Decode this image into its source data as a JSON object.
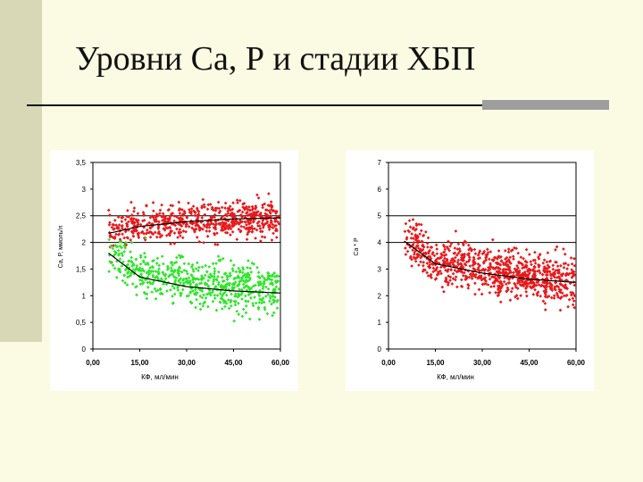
{
  "slide": {
    "title": "Уровни Са, Р и стадии ХБП"
  },
  "colors": {
    "background": "#fbfbe3",
    "sidebar": "#d8d8b6",
    "red": "#e8191b",
    "green": "#2ee62a",
    "line": "#000000"
  },
  "chart_data": [
    {
      "type": "scatter",
      "title": "",
      "xlabel": "КФ, мл/мин",
      "ylabel": "Ca, P, ммоль/л",
      "xlim": [
        0,
        60
      ],
      "ylim": [
        0,
        3.5
      ],
      "x_ticks": [
        "0,00",
        "15,00",
        "30,00",
        "45,00",
        "60,00"
      ],
      "y_ticks": [
        "0",
        "0,5",
        "1",
        "1,5",
        "2",
        "2,5",
        "3",
        "3,5"
      ],
      "hlines": [
        2,
        2.5
      ],
      "grid": false,
      "series": [
        {
          "color": "#e8191b",
          "x_range": [
            5,
            60
          ],
          "center": 2.4,
          "spread": 0.16,
          "count": 650,
          "trend": {
            "x": [
              5,
              15,
              30,
              45,
              60
            ],
            "y": [
              2.17,
              2.3,
              2.39,
              2.44,
              2.46
            ]
          }
        },
        {
          "color": "#2ee62a",
          "x_range": [
            5,
            60
          ],
          "center": 1.3,
          "spread": 0.22,
          "count": 650,
          "trend": {
            "x": [
              5,
              15,
              30,
              45,
              60
            ],
            "y": [
              1.8,
              1.35,
              1.17,
              1.09,
              1.05
            ]
          }
        }
      ]
    },
    {
      "type": "scatter",
      "title": "",
      "xlabel": "КФ, мл/мин",
      "ylabel": "Ca * P",
      "xlim": [
        0,
        60
      ],
      "ylim": [
        0,
        7
      ],
      "x_ticks": [
        "0,00",
        "15,00",
        "30,00",
        "45,00",
        "60,00"
      ],
      "y_ticks": [
        "0",
        "1",
        "2",
        "3",
        "4",
        "5",
        "6",
        "7"
      ],
      "hlines": [
        4,
        5
      ],
      "grid": false,
      "series": [
        {
          "color": "#e8191b",
          "x_range": [
            5,
            60
          ],
          "center": 2.95,
          "spread": 0.45,
          "count": 900,
          "trend": {
            "x": [
              5,
              15,
              30,
              45,
              60
            ],
            "y": [
              4.05,
              3.2,
              2.85,
              2.62,
              2.5
            ]
          }
        }
      ]
    }
  ]
}
